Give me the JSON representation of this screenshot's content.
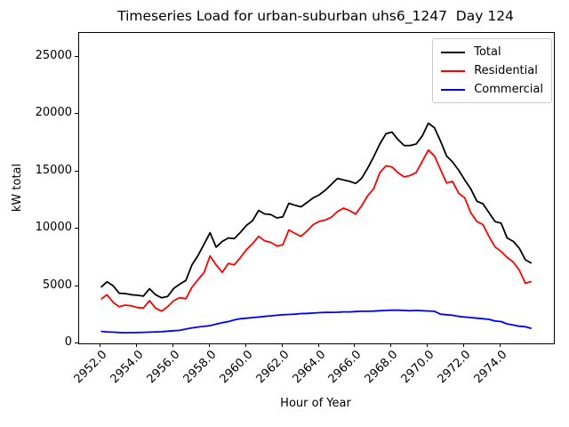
{
  "chart_data": {
    "type": "line",
    "title": "Timeseries Load for urban-suburban uhs6_1247  Day 124",
    "xlabel": "Hour of Year",
    "ylabel": "kW total",
    "xlim": [
      2950.8,
      2976.9
    ],
    "ylim": [
      0,
      27100
    ],
    "x_ticks": [
      "2952.0",
      "2954.0",
      "2956.0",
      "2958.0",
      "2960.0",
      "2962.0",
      "2964.0",
      "2966.0",
      "2968.0",
      "2970.0",
      "2972.0",
      "2974.0"
    ],
    "y_ticks": [
      "0",
      "5000",
      "10000",
      "15000",
      "20000",
      "25000"
    ],
    "x_tick_rotation": 45,
    "grid": false,
    "legend_position": "upper right",
    "x": [
      2952.0,
      2952.33,
      2952.67,
      2953.0,
      2953.33,
      2953.67,
      2954.0,
      2954.33,
      2954.67,
      2955.0,
      2955.33,
      2955.67,
      2956.0,
      2956.33,
      2956.67,
      2957.0,
      2957.33,
      2957.67,
      2958.0,
      2958.33,
      2958.67,
      2959.0,
      2959.33,
      2959.67,
      2960.0,
      2960.33,
      2960.67,
      2961.0,
      2961.33,
      2961.67,
      2962.0,
      2962.33,
      2962.67,
      2963.0,
      2963.33,
      2963.67,
      2964.0,
      2964.33,
      2964.67,
      2965.0,
      2965.33,
      2965.67,
      2966.0,
      2966.33,
      2966.67,
      2967.0,
      2967.33,
      2967.67,
      2968.0,
      2968.33,
      2968.67,
      2969.0,
      2969.33,
      2969.67,
      2970.0,
      2970.33,
      2970.67,
      2971.0,
      2971.33,
      2971.67,
      2972.0,
      2972.33,
      2972.67,
      2973.0,
      2973.33,
      2973.67,
      2974.0,
      2974.33,
      2974.67,
      2975.0,
      2975.33,
      2975.67
    ],
    "series": [
      {
        "name": "Total",
        "color": "#000000",
        "values": [
          4900,
          5370,
          5030,
          4380,
          4350,
          4250,
          4200,
          4120,
          4770,
          4250,
          3980,
          4100,
          4800,
          5160,
          5500,
          6850,
          7650,
          8670,
          9660,
          8400,
          8900,
          9200,
          9150,
          9700,
          10300,
          10700,
          11600,
          11300,
          11250,
          10950,
          11050,
          12230,
          12050,
          11920,
          12300,
          12700,
          12970,
          13360,
          13880,
          14400,
          14270,
          14140,
          13960,
          14400,
          15310,
          16300,
          17400,
          18300,
          18440,
          17790,
          17270,
          17270,
          17400,
          18120,
          19220,
          18830,
          17660,
          16360,
          15830,
          15100,
          14270,
          13490,
          12400,
          12190,
          11410,
          10630,
          10490,
          9200,
          8900,
          8300,
          7300,
          7000
        ]
      },
      {
        "name": "Residential",
        "color": "#ff0000",
        "values": [
          3860,
          4250,
          3590,
          3200,
          3340,
          3280,
          3130,
          3080,
          3730,
          3080,
          2810,
          3200,
          3730,
          3980,
          3900,
          4900,
          5550,
          6200,
          7630,
          6850,
          6200,
          6980,
          6850,
          7500,
          8180,
          8700,
          9340,
          8950,
          8820,
          8500,
          8600,
          9900,
          9600,
          9340,
          9810,
          10370,
          10650,
          10760,
          11020,
          11500,
          11800,
          11590,
          11280,
          12000,
          12900,
          13500,
          14900,
          15500,
          15400,
          14900,
          14530,
          14660,
          14920,
          15900,
          16870,
          16360,
          15180,
          14000,
          14140,
          13100,
          12710,
          11400,
          10630,
          10370,
          9330,
          8410,
          8020,
          7500,
          7100,
          6400,
          5250,
          5400
        ]
      },
      {
        "name": "Commercial",
        "color": "#0000ff",
        "values": [
          1050,
          1000,
          980,
          950,
          930,
          940,
          950,
          960,
          980,
          1000,
          1020,
          1060,
          1100,
          1130,
          1250,
          1350,
          1430,
          1480,
          1550,
          1680,
          1800,
          1900,
          2050,
          2150,
          2200,
          2250,
          2300,
          2350,
          2400,
          2450,
          2500,
          2520,
          2550,
          2600,
          2620,
          2650,
          2680,
          2700,
          2700,
          2720,
          2750,
          2750,
          2780,
          2800,
          2800,
          2820,
          2850,
          2870,
          2900,
          2900,
          2870,
          2850,
          2870,
          2850,
          2830,
          2800,
          2550,
          2500,
          2450,
          2350,
          2300,
          2250,
          2200,
          2150,
          2100,
          1950,
          1900,
          1700,
          1600,
          1500,
          1450,
          1300
        ]
      }
    ]
  }
}
